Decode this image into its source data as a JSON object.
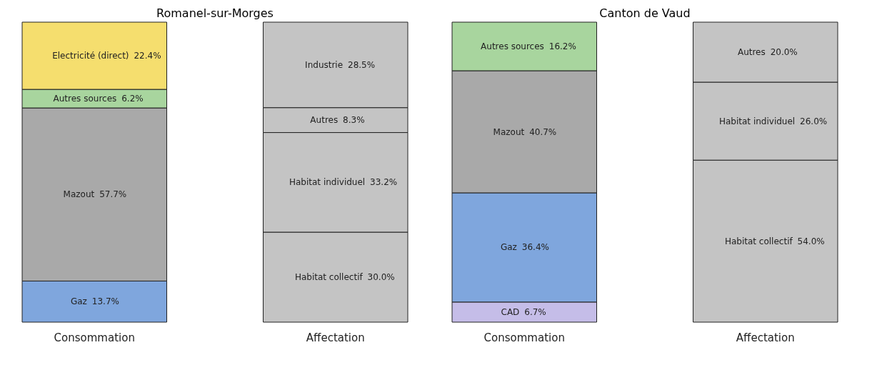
{
  "chart_data": [
    {
      "type": "bar",
      "title": "Romanel-sur-Morges",
      "stacked": true,
      "categories": [
        "Consommation",
        "Affectation"
      ],
      "series": [
        {
          "name": "Gaz",
          "color": "#7fa6dd",
          "values": [
            13.7,
            null
          ],
          "value_labels": [
            "13.7%",
            null
          ]
        },
        {
          "name": "Mazout",
          "color": "#a9a9a9",
          "values": [
            57.7,
            null
          ],
          "value_labels": [
            "57.7%",
            null
          ]
        },
        {
          "name": "Autres sources",
          "color": "#a8d59e",
          "values": [
            6.2,
            null
          ],
          "value_labels": [
            "6.2%",
            null
          ]
        },
        {
          "name": "Electricité (direct)",
          "color": "#f5de6e",
          "values": [
            22.4,
            null
          ],
          "value_labels": [
            "22.4%",
            null
          ]
        },
        {
          "name": "Habitat collectif",
          "color": "#c4c4c4",
          "values": [
            null,
            30.0
          ],
          "value_labels": [
            null,
            "30.0%"
          ]
        },
        {
          "name": "Habitat individuel",
          "color": "#c4c4c4",
          "values": [
            null,
            33.2
          ],
          "value_labels": [
            null,
            "33.2%"
          ]
        },
        {
          "name": "Autres",
          "color": "#c4c4c4",
          "values": [
            null,
            8.3
          ],
          "value_labels": [
            null,
            "8.3%"
          ]
        },
        {
          "name": "Industrie",
          "color": "#c4c4c4",
          "values": [
            null,
            28.5
          ],
          "value_labels": [
            null,
            "28.5%"
          ]
        }
      ]
    },
    {
      "type": "bar",
      "title": "Canton de Vaud",
      "stacked": true,
      "categories": [
        "Consommation",
        "Affectation"
      ],
      "series": [
        {
          "name": "CAD",
          "color": "#c5bde8",
          "values": [
            6.7,
            null
          ],
          "value_labels": [
            "6.7%",
            null
          ]
        },
        {
          "name": "Gaz",
          "color": "#7fa6dd",
          "values": [
            36.4,
            null
          ],
          "value_labels": [
            "36.4%",
            null
          ]
        },
        {
          "name": "Mazout",
          "color": "#a9a9a9",
          "values": [
            40.7,
            null
          ],
          "value_labels": [
            "40.7%",
            null
          ]
        },
        {
          "name": "Autres sources",
          "color": "#a8d59e",
          "values": [
            16.2,
            null
          ],
          "value_labels": [
            "16.2%",
            null
          ]
        },
        {
          "name": "Habitat collectif",
          "color": "#c4c4c4",
          "values": [
            null,
            54.0
          ],
          "value_labels": [
            null,
            "54.0%"
          ]
        },
        {
          "name": "Habitat individuel",
          "color": "#c4c4c4",
          "values": [
            null,
            26.0
          ],
          "value_labels": [
            null,
            "26.0%"
          ]
        },
        {
          "name": "Autres",
          "color": "#c4c4c4",
          "values": [
            null,
            20.0
          ],
          "value_labels": [
            null,
            "20.0%"
          ]
        }
      ]
    }
  ]
}
